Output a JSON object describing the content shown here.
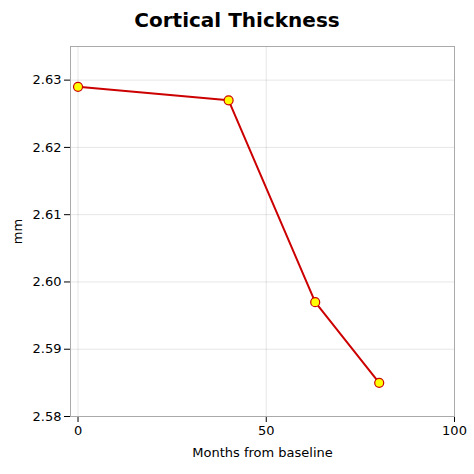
{
  "chart_data": {
    "type": "line",
    "title": "Cortical Thickness",
    "xlabel": "Months from baseline",
    "ylabel": "mm",
    "x": [
      0,
      40,
      63,
      80
    ],
    "values": [
      2.629,
      2.627,
      2.597,
      2.585
    ],
    "color": "#cc0000",
    "marker": "circle",
    "xlim": [
      -2,
      100
    ],
    "ylim": [
      2.58,
      2.635
    ],
    "xticks": [
      0,
      50,
      100
    ],
    "yticks": [
      2.58,
      2.59,
      {
        "value": 2.6,
        "label": "2.60"
      },
      2.61,
      2.62,
      2.63
    ],
    "grid": true
  }
}
